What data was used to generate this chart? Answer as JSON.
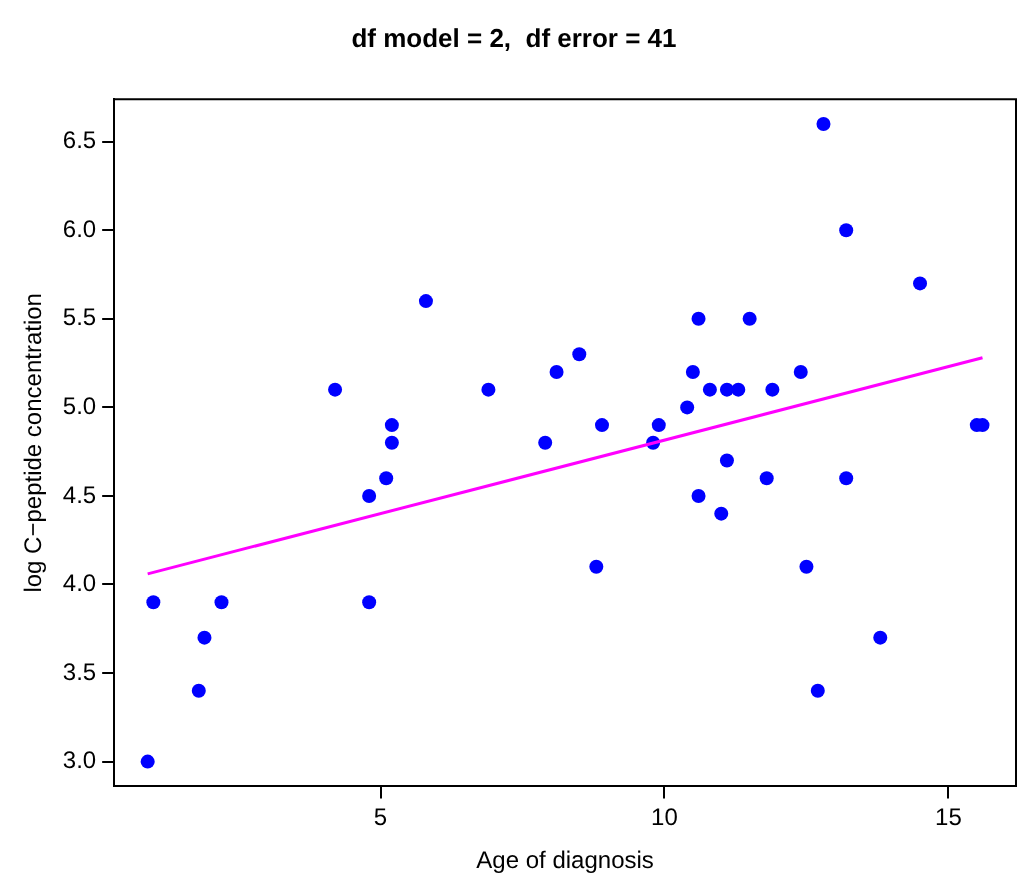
{
  "chart_data": {
    "type": "scatter",
    "title": "df model = 2,  df error = 41",
    "xlabel": "Age of diagnosis",
    "ylabel": "log C−peptide concentration",
    "x": [
      5.2,
      8.8,
      10.5,
      10.6,
      10.4,
      1.8,
      12.7,
      15.6,
      5.8,
      1.9,
      2.2,
      4.8,
      7.9,
      5.2,
      0.9,
      11.8,
      11.5,
      10.6,
      8.5,
      11.1,
      12.8,
      11.3,
      1.0,
      14.5,
      11.9,
      8.1,
      13.8,
      15.5,
      9.8,
      11.0,
      12.4,
      11.1,
      5.1,
      4.8,
      4.2,
      6.9,
      13.2,
      9.9,
      12.5,
      13.2,
      8.9,
      10.8
    ],
    "series": [
      {
        "type": "scatter",
        "color": "#0000ff",
        "marker": "circle",
        "values": [
          4.8,
          4.1,
          5.2,
          5.5,
          5.0,
          3.4,
          3.4,
          4.9,
          5.6,
          3.7,
          3.9,
          4.5,
          4.8,
          4.9,
          3.0,
          4.6,
          5.5,
          4.5,
          5.3,
          4.7,
          6.6,
          5.1,
          3.9,
          5.7,
          5.1,
          5.2,
          3.7,
          4.9,
          4.8,
          4.4,
          5.2,
          5.1,
          4.6,
          3.9,
          5.1,
          5.1,
          6.0,
          4.9,
          4.1,
          4.6,
          4.9,
          5.1
        ]
      },
      {
        "type": "line",
        "color": "#ff00ff",
        "x": [
          0.9,
          15.6
        ],
        "values": [
          4.06,
          5.28
        ],
        "marker": "none",
        "line_style": "solid"
      }
    ],
    "xlim": [
      0.31,
      16.19
    ],
    "xticks": [
      5,
      10,
      15
    ],
    "ylim": [
      2.86,
      6.74
    ],
    "yticks": [
      {
        "value": 3,
        "label": "3.0"
      },
      {
        "value": 3.5,
        "label": "3.5"
      },
      {
        "value": 4,
        "label": "4.0"
      },
      {
        "value": 4.5,
        "label": "4.5"
      },
      {
        "value": 5,
        "label": "5.0"
      },
      {
        "value": 5.5,
        "label": "5.5"
      },
      {
        "value": 6,
        "label": "6.0"
      },
      {
        "value": 6.5,
        "label": "6.5"
      }
    ],
    "grid": false,
    "legend": false
  }
}
